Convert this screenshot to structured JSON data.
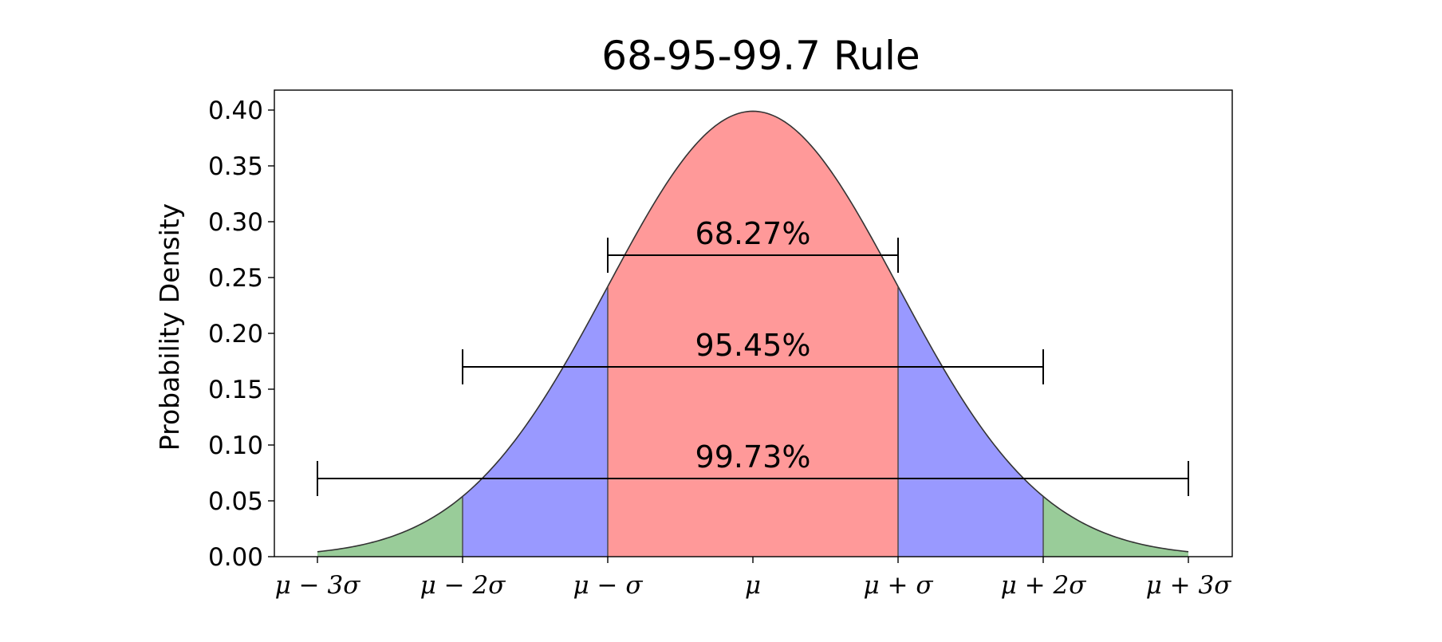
{
  "chart_data": {
    "type": "area",
    "title": "68-95-99.7 Rule",
    "xlabel": "",
    "ylabel": "Probability Density",
    "x_range_sigma": [
      -3,
      3
    ],
    "ylim": [
      0,
      0.4
    ],
    "yticks": [
      "0.00",
      "0.05",
      "0.10",
      "0.15",
      "0.20",
      "0.25",
      "0.30",
      "0.35",
      "0.40"
    ],
    "xticks": [
      {
        "sigma": -3,
        "label": "μ − 3σ"
      },
      {
        "sigma": -2,
        "label": "μ − 2σ"
      },
      {
        "sigma": -1,
        "label": "μ − σ"
      },
      {
        "sigma": 0,
        "label": "μ"
      },
      {
        "sigma": 1,
        "label": "μ + σ"
      },
      {
        "sigma": 2,
        "label": "μ + 2σ"
      },
      {
        "sigma": 3,
        "label": "μ + 3σ"
      }
    ],
    "regions": [
      {
        "from": -3,
        "to": -2,
        "color": "#99cc99"
      },
      {
        "from": -2,
        "to": -1,
        "color": "#9999ff"
      },
      {
        "from": -1,
        "to": 1,
        "color": "#ff9999"
      },
      {
        "from": 1,
        "to": 2,
        "color": "#9999ff"
      },
      {
        "from": 2,
        "to": 3,
        "color": "#99cc99"
      }
    ],
    "brackets": [
      {
        "label": "68.27%",
        "from": -1,
        "to": 1,
        "y": 0.27
      },
      {
        "label": "95.45%",
        "from": -2,
        "to": 2,
        "y": 0.17
      },
      {
        "label": "99.73%",
        "from": -3,
        "to": 3,
        "y": 0.07
      }
    ],
    "grid": false
  }
}
